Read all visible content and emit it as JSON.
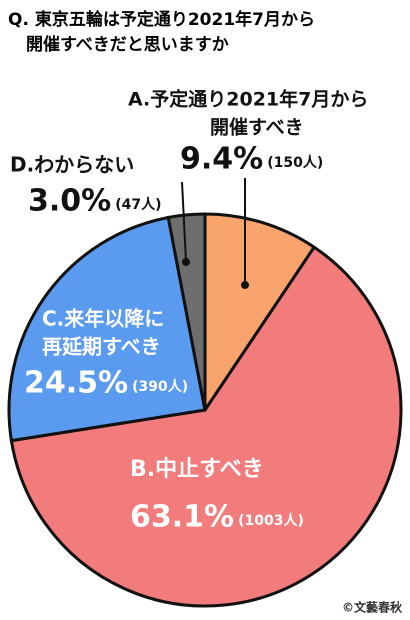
{
  "chart_data": {
    "type": "pie",
    "title": [
      "Q. 東京五輪は予定通り2021年7月から",
      "開催すべきだと思いますか"
    ],
    "categories": [
      [
        "A.予定通り2021年7月から",
        "開催すべき"
      ],
      [
        "B.中止すべき"
      ],
      [
        "C.来年以降に",
        "再延期すべき"
      ],
      [
        "D.わからない"
      ]
    ],
    "values": [
      9.4,
      63.1,
      24.5,
      3.0
    ],
    "value_labels": [
      "9.4%",
      "63.1%",
      "24.5%",
      "3.0%"
    ],
    "count_labels": [
      "(150人)",
      "(1003人)",
      "(390人)",
      "(47人)"
    ],
    "colors": [
      "#f8a46c",
      "#f27b7b",
      "#5a9bf0",
      "#6e6e6e"
    ],
    "credit": "©文藝春秋"
  }
}
